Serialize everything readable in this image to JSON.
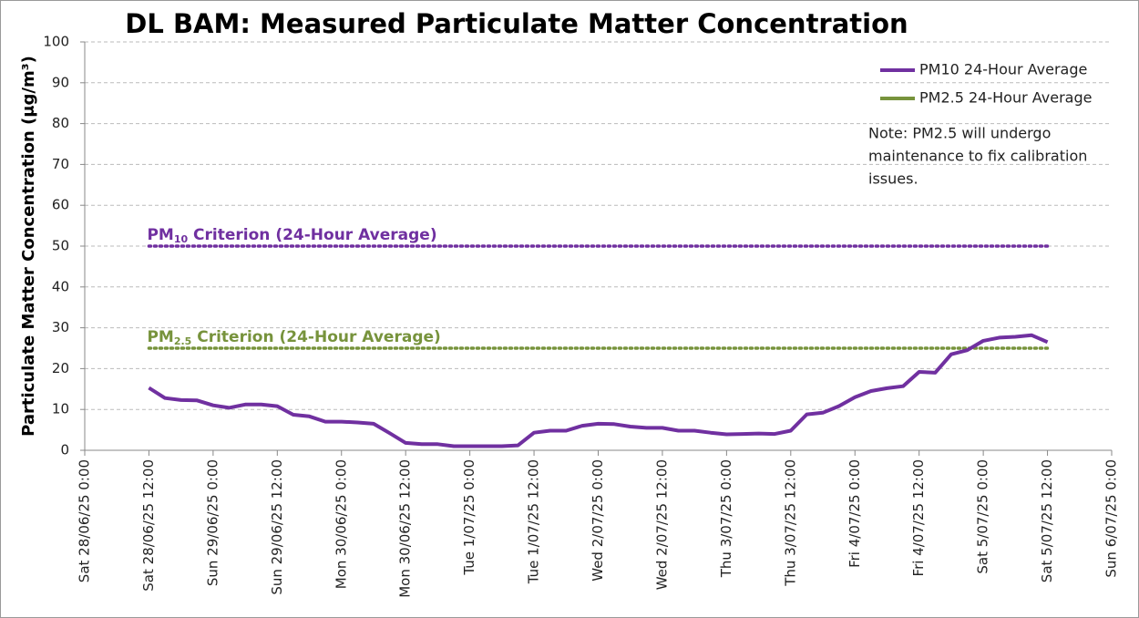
{
  "chart_data": {
    "type": "line",
    "title": "DL BAM: Measured Particulate Matter Concentration",
    "y_label": "Particulate Matter Concentration (μg/m³)",
    "ylim": [
      0,
      100
    ],
    "yticks": [
      0,
      10,
      20,
      30,
      40,
      50,
      60,
      70,
      80,
      90,
      100
    ],
    "grid": true,
    "xlim": [
      "2025-06-28 00:00",
      "2025-07-06 00:00"
    ],
    "xticks": [
      {
        "value": "2025-06-28 00:00",
        "label": "Sat 28/06/25 0:00"
      },
      {
        "value": "2025-06-28 12:00",
        "label": "Sat 28/06/25 12:00"
      },
      {
        "value": "2025-06-29 00:00",
        "label": "Sun 29/06/25 0:00"
      },
      {
        "value": "2025-06-29 12:00",
        "label": "Sun 29/06/25 12:00"
      },
      {
        "value": "2025-06-30 00:00",
        "label": "Mon 30/06/25 0:00"
      },
      {
        "value": "2025-06-30 12:00",
        "label": "Mon 30/06/25 12:00"
      },
      {
        "value": "2025-07-01 00:00",
        "label": "Tue 1/07/25 0:00"
      },
      {
        "value": "2025-07-01 12:00",
        "label": "Tue 1/07/25 12:00"
      },
      {
        "value": "2025-07-02 00:00",
        "label": "Wed 2/07/25 0:00"
      },
      {
        "value": "2025-07-02 12:00",
        "label": "Wed 2/07/25 12:00"
      },
      {
        "value": "2025-07-03 00:00",
        "label": "Thu 3/07/25 0:00"
      },
      {
        "value": "2025-07-03 12:00",
        "label": "Thu 3/07/25 12:00"
      },
      {
        "value": "2025-07-04 00:00",
        "label": "Fri 4/07/25 0:00"
      },
      {
        "value": "2025-07-04 12:00",
        "label": "Fri 4/07/25 12:00"
      },
      {
        "value": "2025-07-05 00:00",
        "label": "Sat 5/07/25 0:00"
      },
      {
        "value": "2025-07-05 12:00",
        "label": "Sat 5/07/25 12:00"
      },
      {
        "value": "2025-07-06 00:00",
        "label": "Sun 6/07/25 0:00"
      }
    ],
    "x": [
      "2025-06-28 12:00",
      "2025-06-28 15:00",
      "2025-06-28 18:00",
      "2025-06-28 21:00",
      "2025-06-29 00:00",
      "2025-06-29 03:00",
      "2025-06-29 06:00",
      "2025-06-29 09:00",
      "2025-06-29 12:00",
      "2025-06-29 15:00",
      "2025-06-29 18:00",
      "2025-06-29 21:00",
      "2025-06-30 00:00",
      "2025-06-30 03:00",
      "2025-06-30 06:00",
      "2025-06-30 09:00",
      "2025-06-30 12:00",
      "2025-06-30 15:00",
      "2025-06-30 18:00",
      "2025-06-30 21:00",
      "2025-07-01 00:00",
      "2025-07-01 03:00",
      "2025-07-01 06:00",
      "2025-07-01 09:00",
      "2025-07-01 12:00",
      "2025-07-01 15:00",
      "2025-07-01 18:00",
      "2025-07-01 21:00",
      "2025-07-02 00:00",
      "2025-07-02 03:00",
      "2025-07-02 06:00",
      "2025-07-02 09:00",
      "2025-07-02 12:00",
      "2025-07-02 15:00",
      "2025-07-02 18:00",
      "2025-07-02 21:00",
      "2025-07-03 00:00",
      "2025-07-03 03:00",
      "2025-07-03 06:00",
      "2025-07-03 09:00",
      "2025-07-03 12:00",
      "2025-07-03 15:00",
      "2025-07-03 18:00",
      "2025-07-03 21:00",
      "2025-07-04 00:00",
      "2025-07-04 03:00",
      "2025-07-04 06:00",
      "2025-07-04 09:00",
      "2025-07-04 12:00",
      "2025-07-04 15:00",
      "2025-07-04 18:00",
      "2025-07-04 21:00",
      "2025-07-05 00:00",
      "2025-07-05 03:00",
      "2025-07-05 06:00",
      "2025-07-05 09:00",
      "2025-07-05 12:00"
    ],
    "series": [
      {
        "name": "PM10 24-Hour Average",
        "color": "#7030a0",
        "values": [
          15.3,
          12.8,
          12.3,
          12.2,
          11.0,
          10.4,
          11.2,
          11.2,
          10.8,
          8.7,
          8.3,
          7.0,
          7.0,
          6.8,
          6.5,
          4.2,
          1.8,
          1.5,
          1.5,
          1.0,
          1.0,
          1.0,
          1.0,
          1.2,
          4.3,
          4.8,
          4.8,
          6.0,
          6.5,
          6.4,
          5.8,
          5.5,
          5.5,
          4.8,
          4.8,
          4.3,
          3.9,
          4.0,
          4.1,
          4.0,
          4.8,
          8.8,
          9.2,
          10.8,
          13.0,
          14.5,
          15.2,
          15.7,
          19.2,
          19.0,
          23.5,
          24.5,
          26.8,
          27.6,
          27.8,
          28.2,
          26.5
        ]
      },
      {
        "name": "PM2.5 24-Hour Average",
        "color": "#77933c",
        "values": [
          null,
          null,
          null,
          null,
          null,
          null,
          null,
          null,
          null,
          null,
          null,
          null,
          null,
          null,
          null,
          null,
          null,
          null,
          null,
          null,
          null,
          null,
          null,
          null,
          null,
          null,
          null,
          null,
          null,
          null,
          null,
          null,
          null,
          null,
          null,
          null,
          null,
          null,
          null,
          null,
          null,
          null,
          null,
          null,
          null,
          null,
          null,
          null,
          null,
          null,
          null,
          null,
          null,
          null,
          null,
          null,
          null
        ]
      }
    ],
    "criteria": [
      {
        "prefix": "PM",
        "subscript": "10",
        "suffix": " Criterion (24-Hour Average)",
        "value": 50,
        "color": "#7030a0",
        "x": [
          "2025-06-28 12:00",
          "2025-07-05 12:00"
        ]
      },
      {
        "prefix": "PM",
        "subscript": "2.5",
        "suffix": " Criterion (24-Hour Average)",
        "value": 25,
        "color": "#77933c",
        "x": [
          "2025-06-28 12:00",
          "2025-07-05 12:00"
        ]
      }
    ],
    "note": [
      "Note: PM2.5 will undergo",
      "maintenance to fix calibration",
      "issues."
    ]
  }
}
